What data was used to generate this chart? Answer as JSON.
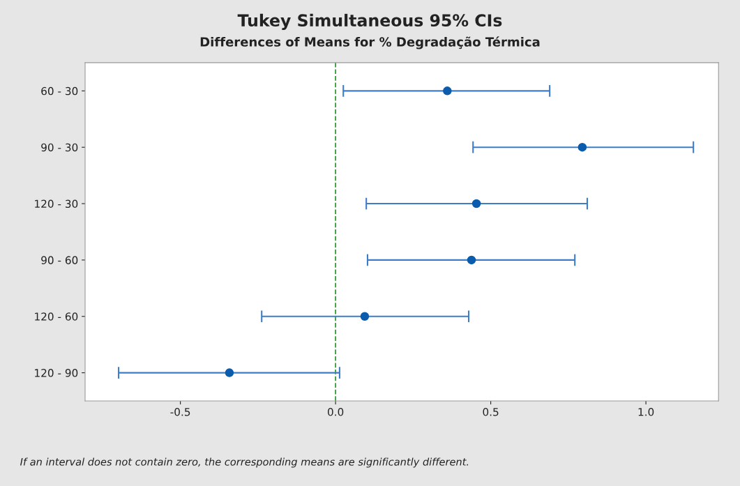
{
  "chart_data": {
    "type": "scatter",
    "orientation": "horizontal",
    "title": "Tukey Simultaneous 95% CIs",
    "subtitle": "Differences of Means for % Degradação Térmica",
    "categories": [
      "60 - 30",
      "90 - 30",
      "120 - 30",
      "90 - 60",
      "120 - 60",
      "120 - 90"
    ],
    "values": [
      0.36,
      0.795,
      0.454,
      0.438,
      0.094,
      -0.342
    ],
    "errors": [
      [
        0.025,
        0.69
      ],
      [
        0.443,
        1.153
      ],
      [
        0.099,
        0.811
      ],
      [
        0.103,
        0.771
      ],
      [
        -0.238,
        0.429
      ],
      [
        -0.699,
        0.013
      ]
    ],
    "color": "#0b5cad",
    "marker": "circle",
    "xlim": [
      -0.807,
      1.234
    ],
    "xticks": [
      {
        "value": -0.5,
        "label": "-0.5"
      },
      {
        "value": 0,
        "label": "0.0"
      },
      {
        "value": 0.5,
        "label": "0.5"
      },
      {
        "value": 1.0,
        "label": "1.0"
      }
    ],
    "ref_lines": [
      {
        "axis": "x",
        "value": 0,
        "color": "#2ca02c",
        "line_style": "dashed"
      }
    ],
    "grid": false,
    "annotations": [
      "If an interval does not contain zero, the corresponding means are significantly different."
    ]
  }
}
